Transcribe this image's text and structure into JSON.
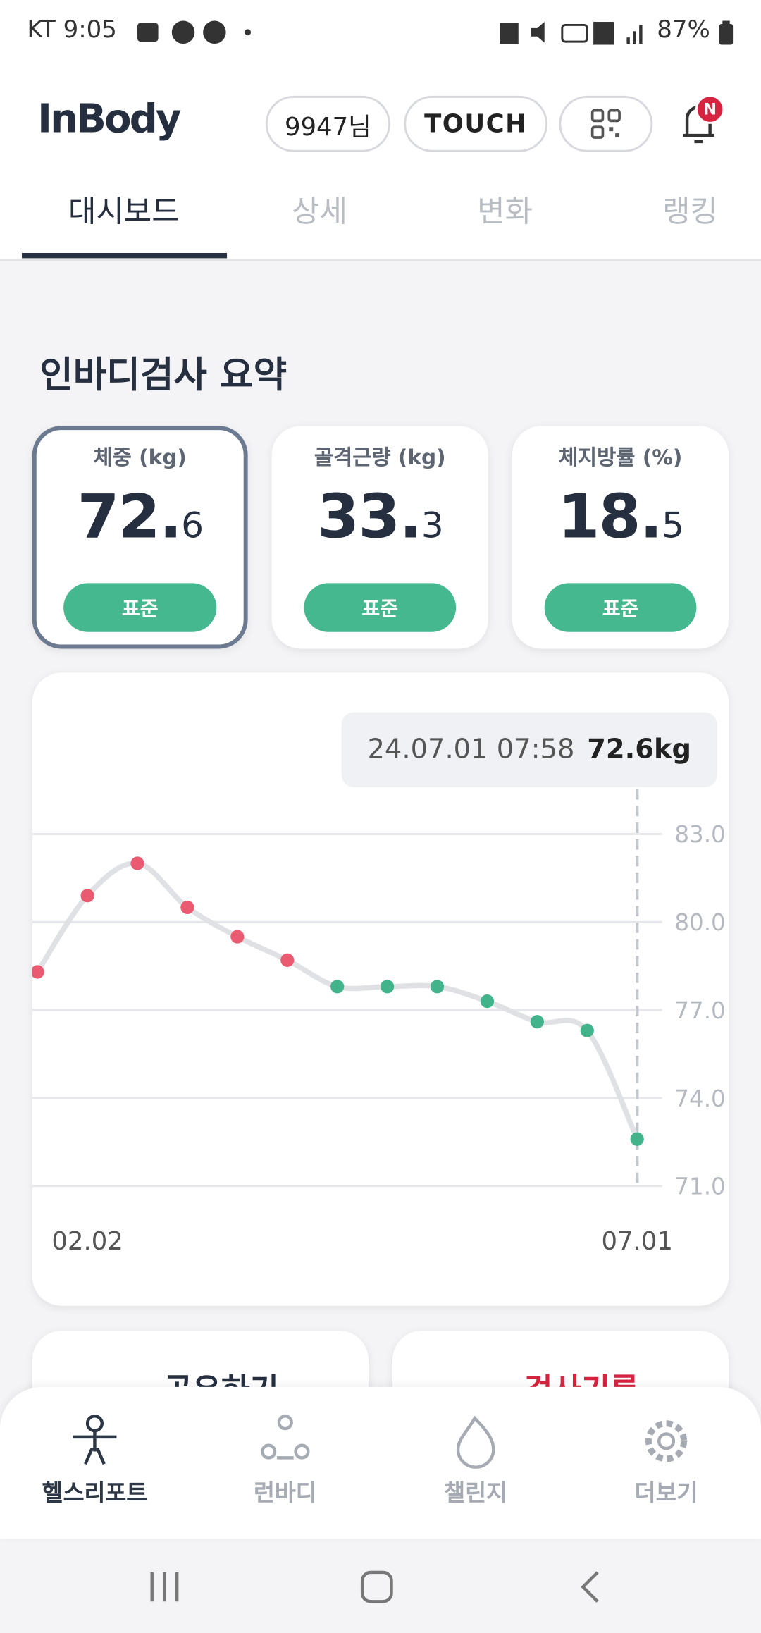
{
  "status_bar": {
    "left": "KT 9:05",
    "battery": "87%"
  },
  "header": {
    "logo": "InBody",
    "user": "9947님",
    "touch": "TOUCH"
  },
  "tabs": [
    "대시보드",
    "상세",
    "변화",
    "랭킹"
  ],
  "section_title": "인바디검사 요약",
  "cards": [
    {
      "label": "체중 (kg)",
      "whole": "72.",
      "fraction": "6",
      "status": "표준"
    },
    {
      "label": "골격근량 (kg)",
      "whole": "33.",
      "fraction": "3",
      "status": "표준"
    },
    {
      "label": "체지방률 (%)",
      "whole": "18.",
      "fraction": "5",
      "status": "표준"
    }
  ],
  "chart_data": {
    "type": "line",
    "categories": [
      null,
      "02.02",
      null,
      null,
      null,
      null,
      null,
      null,
      null,
      null,
      null,
      null,
      "07.01"
    ],
    "values": [
      78.3,
      80.9,
      82.0,
      80.5,
      79.5,
      78.7,
      77.8,
      77.8,
      77.8,
      77.3,
      76.6,
      76.3,
      72.6
    ],
    "point_colors": [
      "#ea5a70",
      "#ea5a70",
      "#ea5a70",
      "#ea5a70",
      "#ea5a70",
      "#ea5a70",
      "#43b38b",
      "#43b38b",
      "#43b38b",
      "#43b38b",
      "#43b38b",
      "#43b38b",
      "#43b38b"
    ],
    "line_color": "#dfe1e5",
    "ylim": [
      71,
      83
    ],
    "yticks": [
      {
        "value": 83,
        "label": "83.0"
      },
      {
        "value": 80,
        "label": "80.0"
      },
      {
        "value": 77,
        "label": "77.0"
      },
      {
        "value": 74,
        "label": "74.0"
      },
      {
        "value": 71,
        "label": "71.0"
      }
    ],
    "grid": true,
    "tooltip": {
      "date": "24.07.01 07:58",
      "value": "72.6kg"
    }
  },
  "buttons": [
    "공유하기",
    "검사기록"
  ],
  "bottom_nav": [
    "헬스리포트",
    "런바디",
    "챌린지",
    "더보기"
  ]
}
